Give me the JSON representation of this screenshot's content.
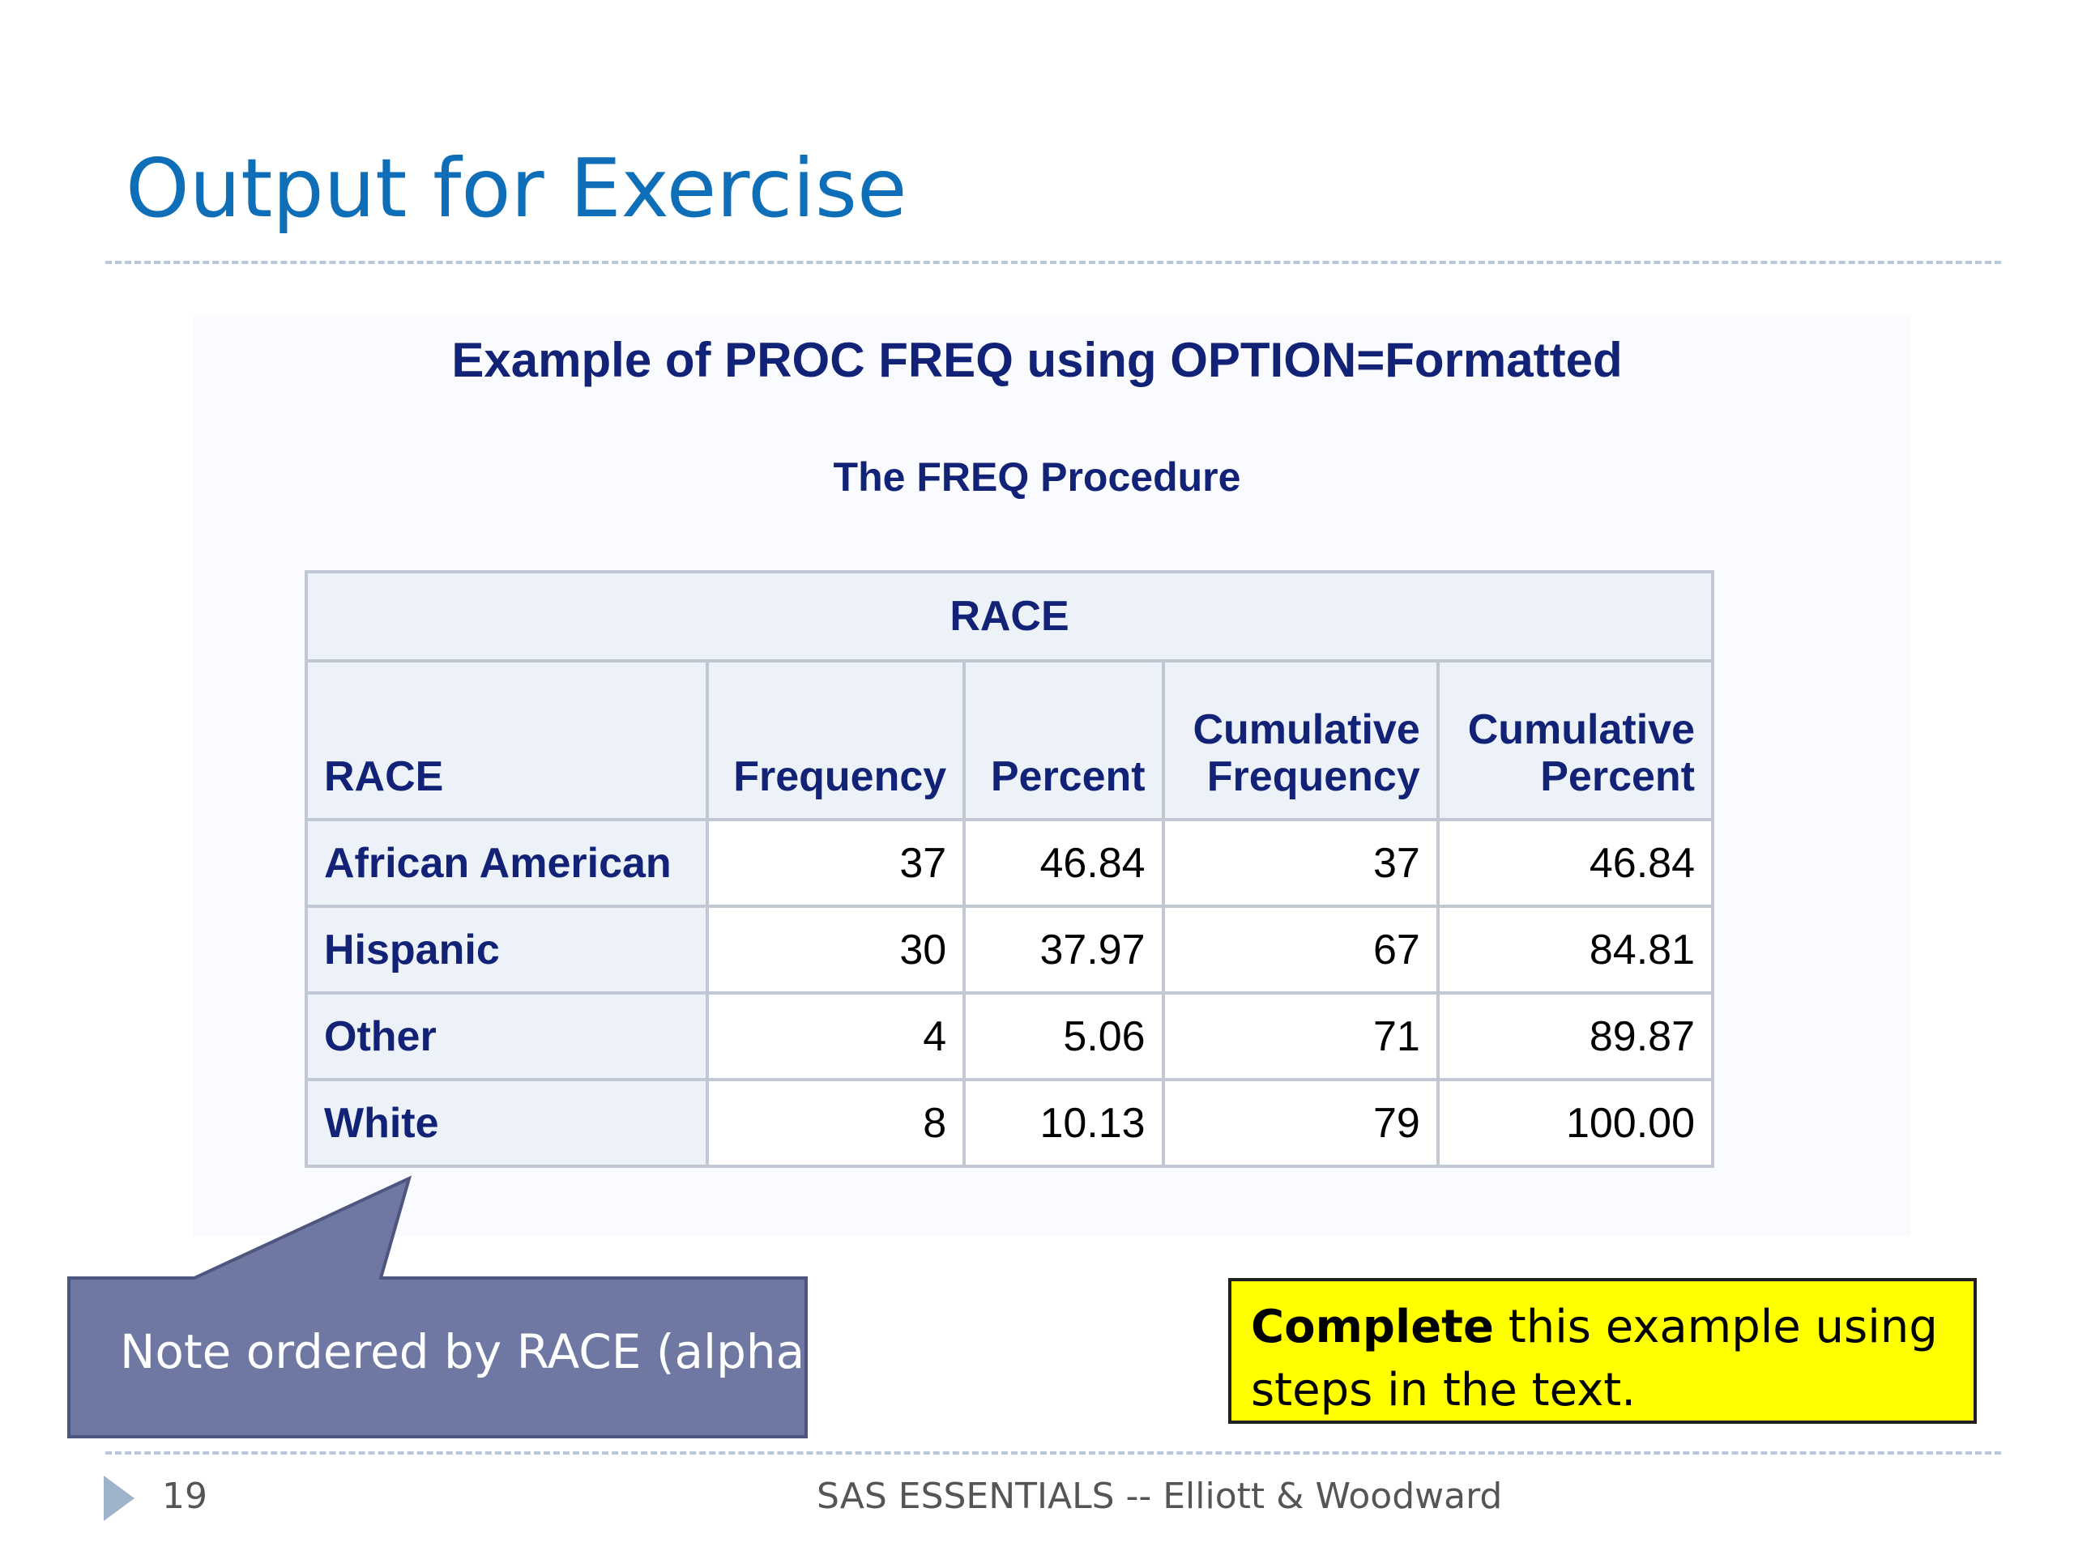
{
  "slide": {
    "title": "Output for Exercise"
  },
  "sas_output": {
    "title": "Example of PROC FREQ using OPTION=Formatted",
    "procedure": "The FREQ Procedure",
    "table": {
      "group_header": "RACE",
      "columns": [
        {
          "lines": [
            "RACE"
          ]
        },
        {
          "lines": [
            "Frequency"
          ]
        },
        {
          "lines": [
            "Percent"
          ]
        },
        {
          "lines": [
            "Cumulative",
            "Frequency"
          ]
        },
        {
          "lines": [
            "Cumulative",
            "Percent"
          ]
        }
      ],
      "rows": [
        {
          "race": "African American",
          "frequency": "37",
          "percent": "46.84",
          "cum_frequency": "37",
          "cum_percent": "46.84"
        },
        {
          "race": "Hispanic",
          "frequency": "30",
          "percent": "37.97",
          "cum_frequency": "67",
          "cum_percent": "84.81"
        },
        {
          "race": "Other",
          "frequency": "4",
          "percent": "5.06",
          "cum_frequency": "71",
          "cum_percent": "89.87"
        },
        {
          "race": "White",
          "frequency": "8",
          "percent": "10.13",
          "cum_frequency": "79",
          "cum_percent": "100.00"
        }
      ]
    }
  },
  "callout": {
    "text": "Note ordered by RACE (alpha)",
    "fill": "#6e78a3"
  },
  "note_box": {
    "bold": "Complete",
    "text": " this example using steps in the text.",
    "background": "#ffff00"
  },
  "footer": {
    "page_number": "19",
    "text": "SAS ESSENTIALS -- Elliott & Woodward",
    "arrow_icon": "triangle-right-icon"
  }
}
